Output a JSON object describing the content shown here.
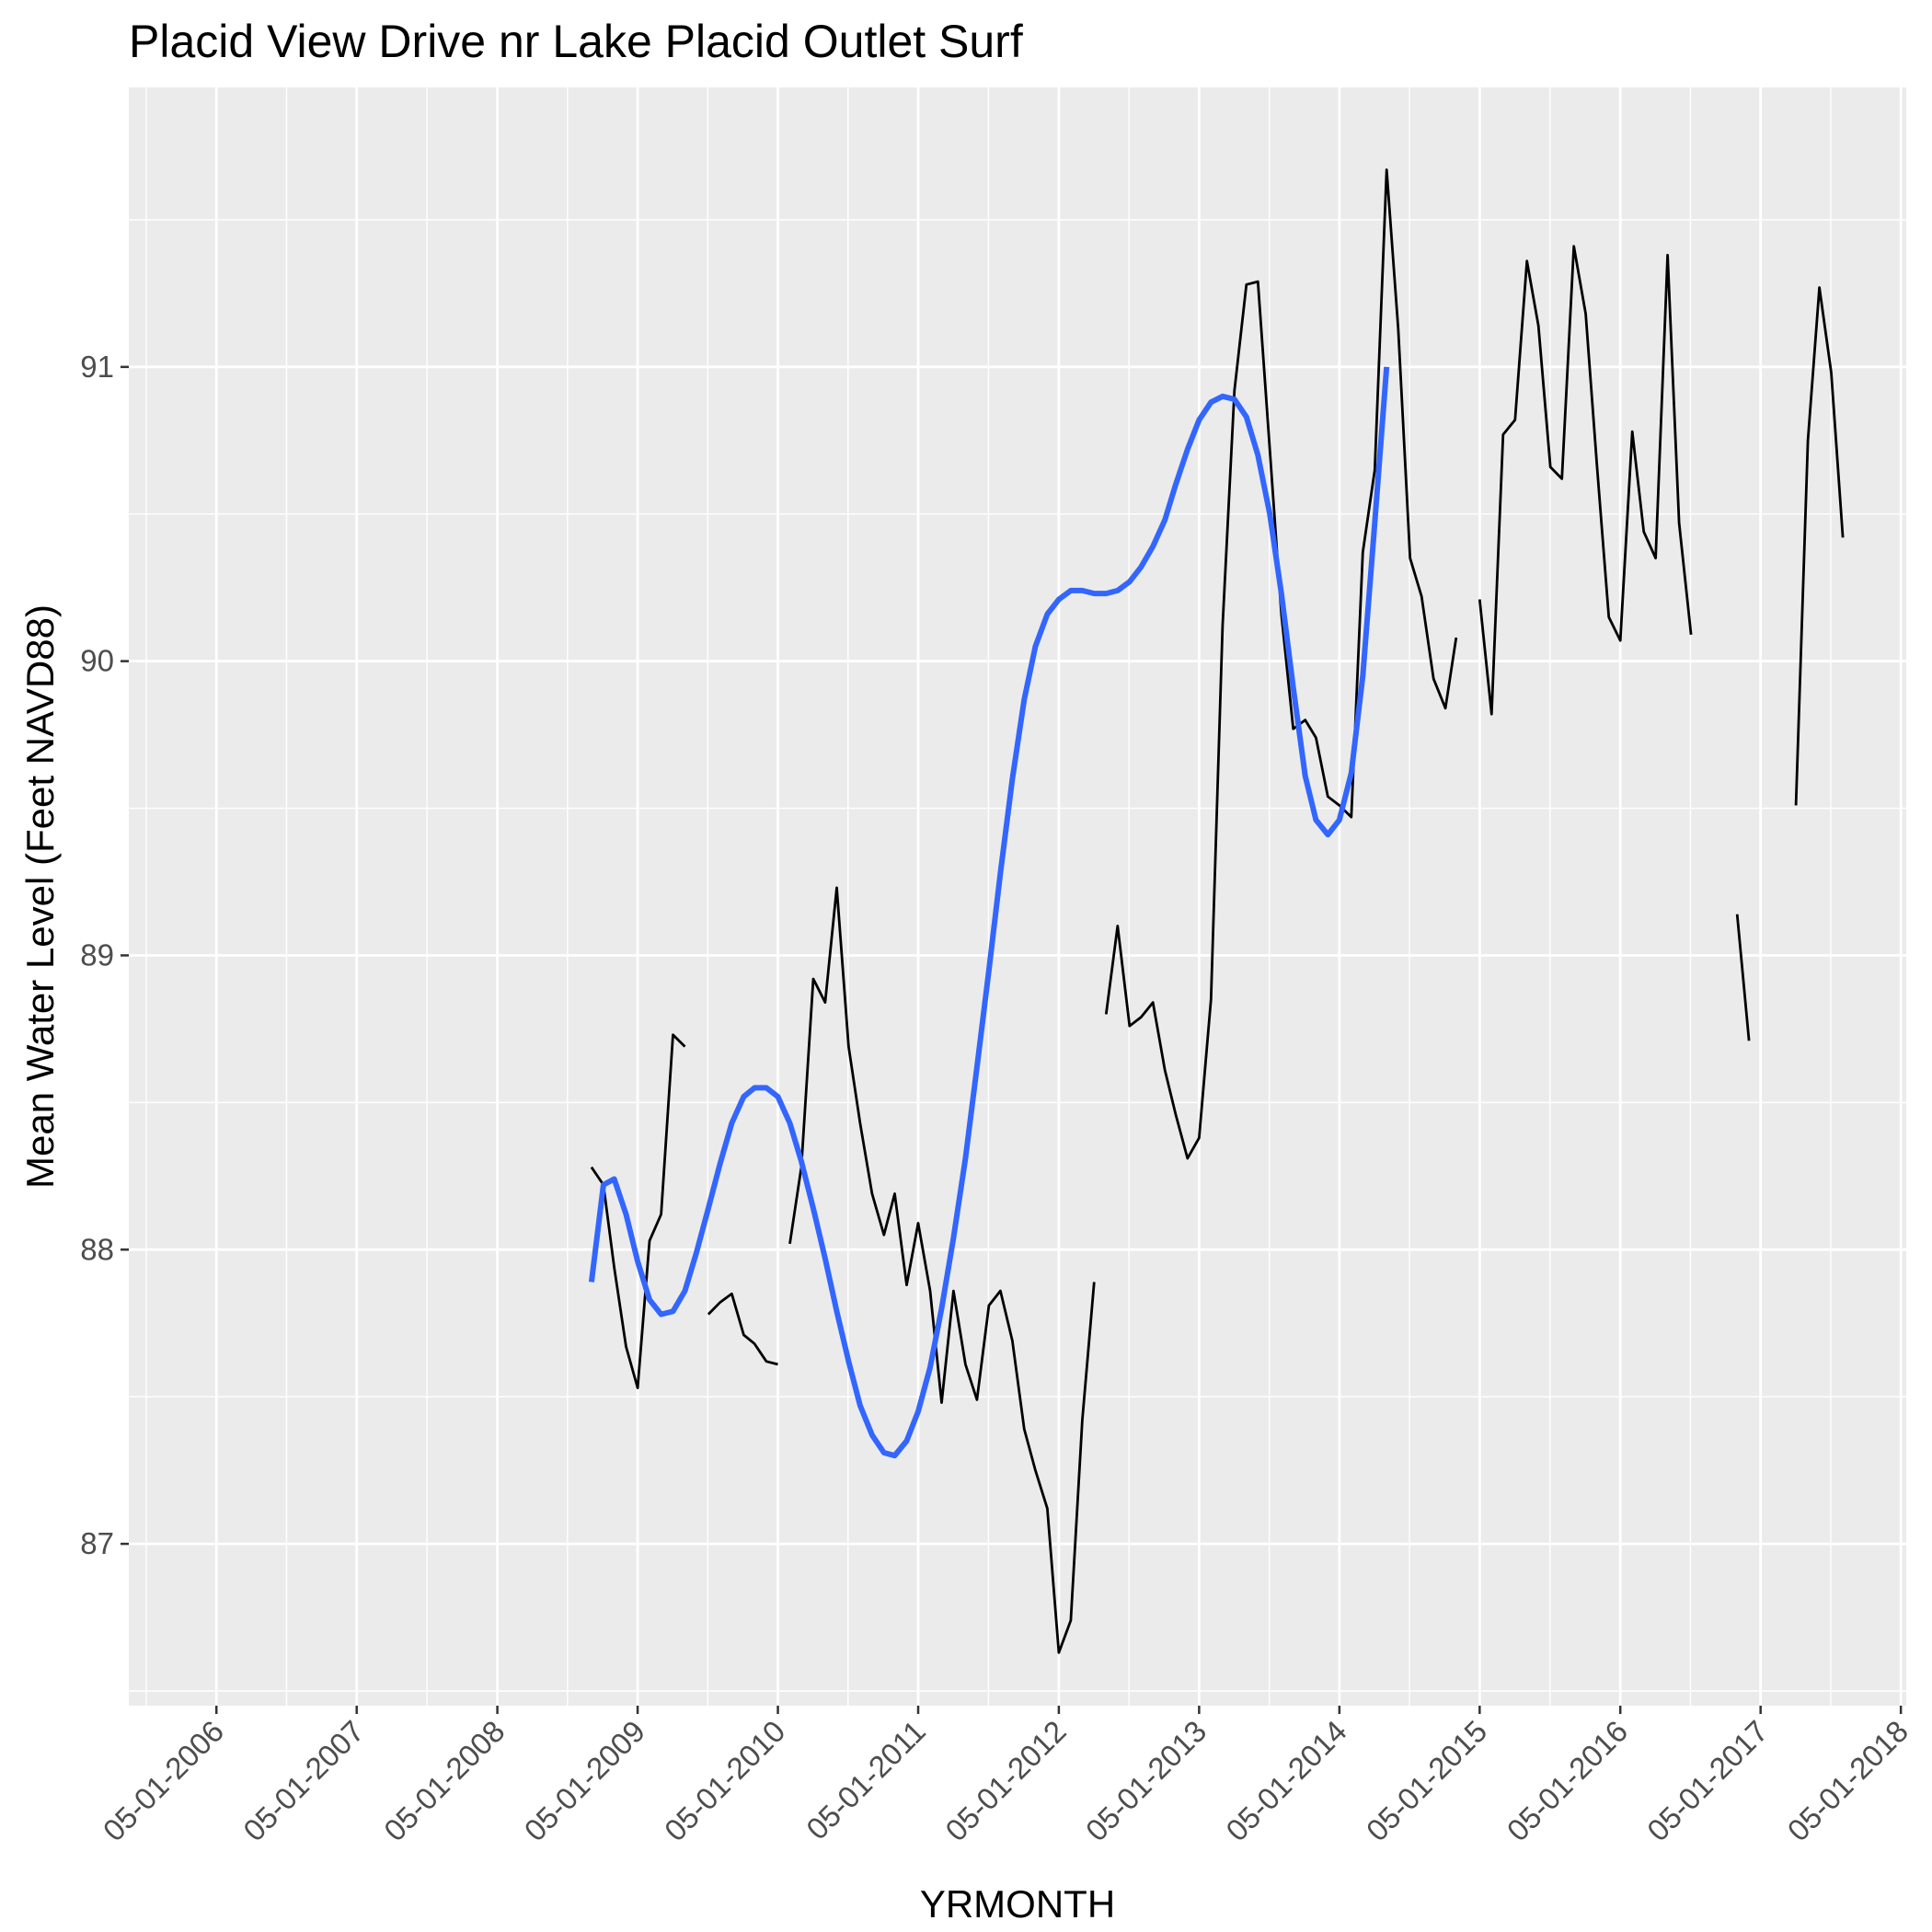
{
  "chart_data": {
    "type": "line",
    "title": "Placid View Drive nr Lake Placid Outlet Surf",
    "xlabel": "YRMONTH",
    "ylabel": "Mean Water Level (Feet NAVD88)",
    "x_range": [
      "2005-09-15",
      "2018-05-15"
    ],
    "ylim": [
      86.45,
      91.95
    ],
    "x_ticks": [
      "2006-05-01",
      "2007-05-01",
      "2008-05-01",
      "2009-05-01",
      "2010-05-01",
      "2011-05-01",
      "2012-05-01",
      "2013-05-01",
      "2014-05-01",
      "2015-05-01",
      "2016-05-01",
      "2017-05-01",
      "2018-05-01"
    ],
    "x_tick_labels": [
      "05-01-2006",
      "05-01-2007",
      "05-01-2008",
      "05-01-2009",
      "05-01-2010",
      "05-01-2011",
      "05-01-2012",
      "05-01-2013",
      "05-01-2014",
      "05-01-2015",
      "05-01-2016",
      "05-01-2017",
      "05-01-2018"
    ],
    "y_ticks": [
      87,
      88,
      89,
      90,
      91
    ],
    "y_tick_labels": [
      "87",
      "88",
      "89",
      "90",
      "91"
    ],
    "grid": true,
    "colors": {
      "panel": "#ebebeb",
      "grid": "#ffffff",
      "observed": "#000000",
      "smooth": "#3366ff"
    },
    "series": [
      {
        "kind": "observed",
        "segments": [
          [
            [
              "2009-01-01",
              88.28
            ],
            [
              "2009-02-01",
              88.22
            ],
            [
              "2009-03-01",
              87.94
            ],
            [
              "2009-04-01",
              87.67
            ],
            [
              "2009-05-01",
              87.53
            ],
            [
              "2009-06-01",
              88.03
            ],
            [
              "2009-07-01",
              88.12
            ],
            [
              "2009-08-01",
              88.73
            ],
            [
              "2009-09-01",
              88.69
            ]
          ],
          [
            [
              "2009-11-01",
              87.78
            ],
            [
              "2009-12-01",
              87.82
            ],
            [
              "2010-01-01",
              87.85
            ],
            [
              "2010-02-01",
              87.71
            ],
            [
              "2010-03-01",
              87.68
            ],
            [
              "2010-04-01",
              87.62
            ],
            [
              "2010-05-01",
              87.61
            ]
          ],
          [
            [
              "2010-06-01",
              88.02
            ],
            [
              "2010-07-01",
              88.28
            ],
            [
              "2010-08-01",
              88.92
            ],
            [
              "2010-09-01",
              88.84
            ],
            [
              "2010-10-01",
              89.23
            ],
            [
              "2010-11-01",
              88.69
            ],
            [
              "2010-12-01",
              88.43
            ],
            [
              "2011-01-01",
              88.19
            ],
            [
              "2011-02-01",
              88.05
            ],
            [
              "2011-03-01",
              88.19
            ],
            [
              "2011-04-01",
              87.88
            ],
            [
              "2011-05-01",
              88.09
            ],
            [
              "2011-06-01",
              87.86
            ],
            [
              "2011-07-01",
              87.48
            ],
            [
              "2011-08-01",
              87.86
            ],
            [
              "2011-09-01",
              87.61
            ],
            [
              "2011-10-01",
              87.49
            ],
            [
              "2011-11-01",
              87.81
            ],
            [
              "2011-12-01",
              87.86
            ],
            [
              "2012-01-01",
              87.69
            ],
            [
              "2012-02-01",
              87.39
            ],
            [
              "2012-03-01",
              87.25
            ],
            [
              "2012-04-01",
              87.12
            ],
            [
              "2012-05-01",
              86.63
            ],
            [
              "2012-06-01",
              86.74
            ],
            [
              "2012-07-01",
              87.42
            ],
            [
              "2012-08-01",
              87.89
            ]
          ],
          [
            [
              "2012-09-01",
              88.8
            ],
            [
              "2012-10-01",
              89.1
            ],
            [
              "2012-11-01",
              88.76
            ],
            [
              "2012-12-01",
              88.79
            ],
            [
              "2013-01-01",
              88.84
            ],
            [
              "2013-02-01",
              88.61
            ],
            [
              "2013-03-01",
              88.46
            ],
            [
              "2013-04-01",
              88.31
            ],
            [
              "2013-05-01",
              88.38
            ],
            [
              "2013-06-01",
              88.85
            ],
            [
              "2013-07-01",
              90.12
            ],
            [
              "2013-08-01",
              90.92
            ],
            [
              "2013-09-01",
              91.28
            ],
            [
              "2013-10-01",
              91.29
            ],
            [
              "2013-11-01",
              90.72
            ],
            [
              "2013-12-01",
              90.16
            ],
            [
              "2014-01-01",
              89.77
            ],
            [
              "2014-02-01",
              89.8
            ],
            [
              "2014-03-01",
              89.74
            ],
            [
              "2014-04-01",
              89.54
            ],
            [
              "2014-05-01",
              89.51
            ],
            [
              "2014-06-01",
              89.47
            ],
            [
              "2014-07-01",
              90.37
            ],
            [
              "2014-08-01",
              90.65
            ],
            [
              "2014-09-01",
              91.67
            ],
            [
              "2014-10-01",
              91.13
            ],
            [
              "2014-11-01",
              90.35
            ],
            [
              "2014-12-01",
              90.22
            ],
            [
              "2015-01-01",
              89.94
            ],
            [
              "2015-02-01",
              89.84
            ],
            [
              "2015-03-01",
              90.08
            ]
          ],
          [
            [
              "2015-05-01",
              90.21
            ],
            [
              "2015-06-01",
              89.82
            ],
            [
              "2015-07-01",
              90.77
            ],
            [
              "2015-08-01",
              90.82
            ],
            [
              "2015-09-01",
              91.36
            ],
            [
              "2015-10-01",
              91.14
            ],
            [
              "2015-11-01",
              90.66
            ],
            [
              "2015-12-01",
              90.62
            ],
            [
              "2016-01-01",
              91.41
            ],
            [
              "2016-02-01",
              91.18
            ],
            [
              "2016-03-01",
              90.67
            ],
            [
              "2016-04-01",
              90.15
            ],
            [
              "2016-05-01",
              90.07
            ],
            [
              "2016-06-01",
              90.78
            ],
            [
              "2016-07-01",
              90.44
            ],
            [
              "2016-08-01",
              90.35
            ],
            [
              "2016-09-01",
              91.38
            ],
            [
              "2016-10-01",
              90.47
            ],
            [
              "2016-11-01",
              90.09
            ]
          ],
          [
            [
              "2017-03-01",
              89.14
            ],
            [
              "2017-04-01",
              88.71
            ]
          ],
          [
            [
              "2017-08-01",
              89.51
            ],
            [
              "2017-09-01",
              90.75
            ],
            [
              "2017-10-01",
              91.27
            ],
            [
              "2017-11-01",
              90.98
            ],
            [
              "2017-12-01",
              90.42
            ]
          ]
        ]
      },
      {
        "kind": "smooth",
        "points": [
          [
            "2009-01-01",
            87.89
          ],
          [
            "2009-02-01",
            88.22
          ],
          [
            "2009-03-01",
            88.24
          ],
          [
            "2009-04-01",
            88.12
          ],
          [
            "2009-05-01",
            87.96
          ],
          [
            "2009-06-01",
            87.83
          ],
          [
            "2009-07-01",
            87.78
          ],
          [
            "2009-08-01",
            87.79
          ],
          [
            "2009-09-01",
            87.86
          ],
          [
            "2009-10-01",
            87.99
          ],
          [
            "2009-11-01",
            88.14
          ],
          [
            "2009-12-01",
            88.29
          ],
          [
            "2010-01-01",
            88.43
          ],
          [
            "2010-02-01",
            88.52
          ],
          [
            "2010-03-01",
            88.55
          ],
          [
            "2010-04-01",
            88.55
          ],
          [
            "2010-05-01",
            88.52
          ],
          [
            "2010-06-01",
            88.43
          ],
          [
            "2010-07-01",
            88.3
          ],
          [
            "2010-08-01",
            88.14
          ],
          [
            "2010-09-01",
            87.97
          ],
          [
            "2010-10-01",
            87.79
          ],
          [
            "2010-11-01",
            87.62
          ],
          [
            "2010-12-01",
            87.47
          ],
          [
            "2011-01-01",
            87.37
          ],
          [
            "2011-02-01",
            87.31
          ],
          [
            "2011-03-01",
            87.3
          ],
          [
            "2011-04-01",
            87.35
          ],
          [
            "2011-05-01",
            87.45
          ],
          [
            "2011-06-01",
            87.6
          ],
          [
            "2011-07-01",
            87.8
          ],
          [
            "2011-08-01",
            88.04
          ],
          [
            "2011-09-01",
            88.31
          ],
          [
            "2011-10-01",
            88.62
          ],
          [
            "2011-11-01",
            88.95
          ],
          [
            "2011-12-01",
            89.28
          ],
          [
            "2012-01-01",
            89.6
          ],
          [
            "2012-02-01",
            89.87
          ],
          [
            "2012-03-01",
            90.05
          ],
          [
            "2012-04-01",
            90.16
          ],
          [
            "2012-05-01",
            90.21
          ],
          [
            "2012-06-01",
            90.24
          ],
          [
            "2012-07-01",
            90.24
          ],
          [
            "2012-08-01",
            90.23
          ],
          [
            "2012-09-01",
            90.23
          ],
          [
            "2012-10-01",
            90.24
          ],
          [
            "2012-11-01",
            90.27
          ],
          [
            "2012-12-01",
            90.32
          ],
          [
            "2013-01-01",
            90.39
          ],
          [
            "2013-02-01",
            90.48
          ],
          [
            "2013-03-01",
            90.6
          ],
          [
            "2013-04-01",
            90.72
          ],
          [
            "2013-05-01",
            90.82
          ],
          [
            "2013-06-01",
            90.88
          ],
          [
            "2013-07-01",
            90.9
          ],
          [
            "2013-08-01",
            90.89
          ],
          [
            "2013-09-01",
            90.83
          ],
          [
            "2013-10-01",
            90.7
          ],
          [
            "2013-11-01",
            90.5
          ],
          [
            "2013-12-01",
            90.23
          ],
          [
            "2014-01-01",
            89.91
          ],
          [
            "2014-02-01",
            89.61
          ],
          [
            "2014-03-01",
            89.46
          ],
          [
            "2014-04-01",
            89.41
          ],
          [
            "2014-05-01",
            89.46
          ],
          [
            "2014-06-01",
            89.62
          ],
          [
            "2014-07-01",
            89.95
          ],
          [
            "2014-08-01",
            90.47
          ],
          [
            "2014-09-01",
            91.0
          ]
        ]
      }
    ]
  }
}
